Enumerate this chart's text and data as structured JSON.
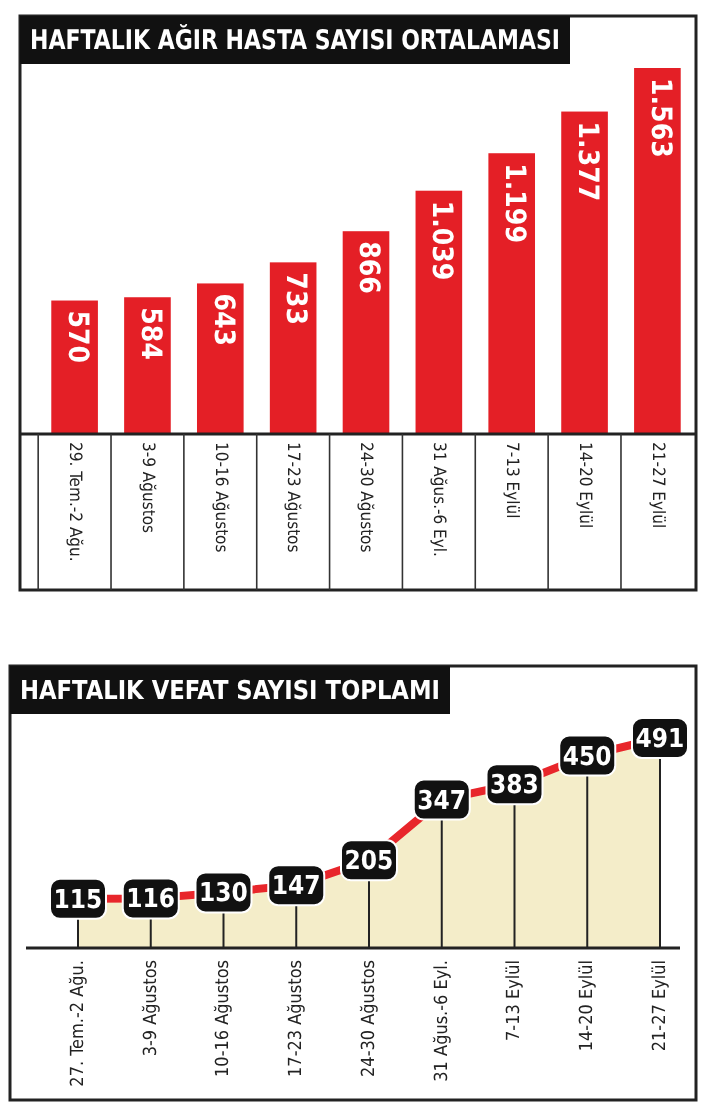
{
  "chart_data": [
    {
      "type": "bar",
      "title": "HAFTALIK AĞIR HASTA SAYISI ORTALAMASI",
      "categories": [
        "29. Tem.-2 Ağu.",
        "3-9 Ağustos",
        "10-16 Ağustos",
        "17-23 Ağustos",
        "24-30 Ağustos",
        "31 Ağus.-6 Eyl.",
        "7-13 Eylül",
        "14-20 Eylül",
        "21-27 Eylül"
      ],
      "values": [
        570,
        584,
        643,
        733,
        866,
        1039,
        1199,
        1377,
        1563
      ],
      "value_labels": [
        "570",
        "584",
        "643",
        "733",
        "866",
        "1.039",
        "1.199",
        "1.377",
        "1.563"
      ],
      "color": "#e41f26"
    },
    {
      "type": "area",
      "title": "HAFTALIK VEFAT SAYISI TOPLAMI",
      "categories": [
        "27. Tem.-2 Ağu.",
        "3-9 Ağustos",
        "10-16 Ağustos",
        "17-23 Ağustos",
        "24-30 Ağustos",
        "31 Ağus.-6 Eyl.",
        "7-13 Eylül",
        "14-20 Eylül",
        "21-27 Eylül"
      ],
      "values": [
        115,
        116,
        130,
        147,
        205,
        347,
        383,
        450,
        491
      ],
      "data_labels": true,
      "grid": "x",
      "color": "#e8262b"
    }
  ]
}
